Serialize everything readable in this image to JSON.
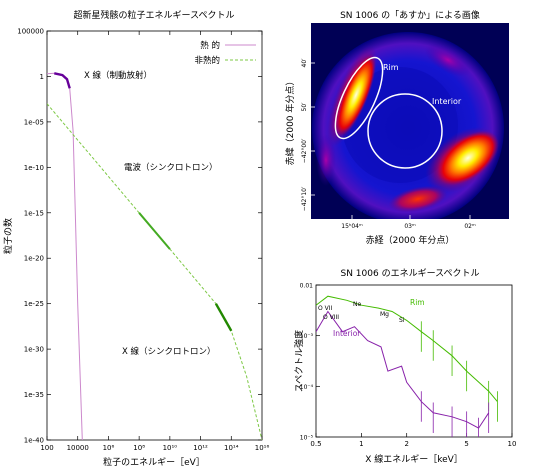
{
  "chart_data": [
    {
      "type": "line",
      "title": "超新星残骸の粒子エネルギースペクトル",
      "xlabel": "粒子のエネルギー［eV］",
      "ylabel": "粒子の数",
      "xscale": "log",
      "yscale": "log",
      "xlim": [
        100,
        1e+16
      ],
      "ylim": [
        1e-40,
        100000
      ],
      "x_ticks": [
        "100",
        "10000",
        "10⁶",
        "10⁸",
        "10¹⁰",
        "10¹²",
        "10¹⁴",
        "10¹⁶"
      ],
      "y_ticks": [
        "100000",
        "1",
        "1e-05",
        "1e-10",
        "1e-15",
        "1e-20",
        "1e-25",
        "1e-30",
        "1e-35",
        "1e-40"
      ],
      "legend_position": "top-right",
      "series": [
        {
          "name": "熱 的",
          "color": "#cc88cc",
          "points": [
            [
              100,
              2
            ],
            [
              300,
              2.2
            ],
            [
              1000,
              1.4
            ],
            [
              2000,
              0.5
            ],
            [
              3000,
              0.05
            ],
            [
              5000,
              1e-06
            ],
            [
              7000,
              1e-15
            ],
            [
              10000,
              1e-25
            ],
            [
              20000,
              1e-40
            ]
          ]
        },
        {
          "name": "非熱的",
          "color": "#7dc845",
          "points": [
            [
              100,
              0.001
            ],
            [
              1000,
              1e-05
            ],
            [
              10000,
              1e-07
            ],
            [
              100000,
              1e-09
            ],
            [
              1000000,
              1e-11
            ],
            [
              100000000.0,
              1e-15
            ],
            [
              10000000000.0,
              1e-19
            ],
            [
              1000000000000.0,
              1e-23
            ],
            [
              10000000000000.0,
              1e-25
            ],
            [
              100000000000000.0,
              1e-28
            ],
            [
              1000000000000000.0,
              1e-33
            ],
            [
              1e+16,
              1e-40
            ]
          ]
        }
      ],
      "annotations": [
        "X 線（制動放射）",
        "電波（シンクロトロン）",
        "X 線（シンクロトロン）"
      ],
      "thermal_xray_highlight_range": [
        300,
        3000
      ],
      "radio_highlight_range": [
        100000000.0,
        10000000000.0
      ],
      "synchrotron_xray_highlight_range": [
        10000000000000.0,
        100000000000000.0
      ]
    },
    {
      "type": "heatmap",
      "title": "SN 1006 の「あすか」による画像",
      "xlabel": "赤経（2000 年分点）",
      "ylabel": "赤緯（2000 年分点）",
      "x_ticks": [
        "15ʰ04ᵐ",
        "03ᵐ",
        "02ᵐ"
      ],
      "y_ticks": [
        "40′",
        "50′",
        "−42°00′",
        "−42°10′"
      ],
      "regions": [
        "Rim",
        "Interior"
      ],
      "colormap": [
        "#000066",
        "#0000cc",
        "#3030ff",
        "#9900aa",
        "#ff0000",
        "#ff8800",
        "#ffff00",
        "#ffffcc"
      ]
    },
    {
      "type": "line",
      "title": "SN 1006 のエネルギースペクトル",
      "xlabel": "X 線エネルギー［keV］",
      "ylabel": "スペクトル強度",
      "xscale": "log",
      "yscale": "log",
      "xlim": [
        0.5,
        10
      ],
      "ylim": [
        1e-05,
        0.01
      ],
      "x_ticks": [
        "0.5",
        "1",
        "2",
        "5",
        "10"
      ],
      "y_ticks": [
        "0.01",
        "10⁻³",
        "10⁻⁴",
        "10⁻⁵"
      ],
      "line_labels": [
        "O VII",
        "O VIII",
        "Ne",
        "Mg",
        "Si"
      ],
      "series": [
        {
          "name": "Rim",
          "color": "#44bb00",
          "points": [
            [
              0.5,
              0.004
            ],
            [
              0.6,
              0.006
            ],
            [
              0.8,
              0.005
            ],
            [
              1,
              0.004
            ],
            [
              1.3,
              0.0035
            ],
            [
              1.6,
              0.003
            ],
            [
              2,
              0.002
            ],
            [
              2.5,
              0.0012
            ],
            [
              3,
              0.0008
            ],
            [
              4,
              0.0004
            ],
            [
              5,
              0.0002
            ],
            [
              7,
              8e-05
            ],
            [
              8,
              5e-05
            ]
          ]
        },
        {
          "name": "Interior",
          "color": "#8822aa",
          "points": [
            [
              0.5,
              0.0012
            ],
            [
              0.6,
              0.003
            ],
            [
              0.75,
              0.0012
            ],
            [
              0.9,
              0.0015
            ],
            [
              1.1,
              0.0008
            ],
            [
              1.35,
              0.0006
            ],
            [
              1.5,
              0.0002
            ],
            [
              1.85,
              0.00025
            ],
            [
              2,
              0.00012
            ],
            [
              2.5,
              5e-05
            ],
            [
              3,
              3e-05
            ],
            [
              4,
              2.5e-05
            ],
            [
              5,
              2e-05
            ],
            [
              6,
              1.5e-05
            ],
            [
              7,
              3e-05
            ]
          ]
        }
      ]
    }
  ]
}
